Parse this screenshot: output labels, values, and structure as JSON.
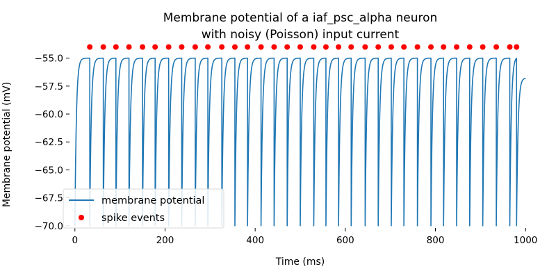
{
  "chart_data": {
    "type": "line",
    "title": "Membrane potential of a iaf_psc_alpha neuron\nwith noisy (Poisson) input current",
    "title_lines": [
      "Membrane potential of a iaf_psc_alpha neuron",
      "with noisy (Poisson) input current"
    ],
    "xlabel": "Time (ms)",
    "ylabel": "Membrane potential (mV)",
    "xlim": [
      -12,
      1012
    ],
    "ylim": [
      -70.2,
      -53.9
    ],
    "x_ticks": [
      0,
      200,
      400,
      600,
      800,
      1000
    ],
    "x_tick_labels": [
      "0",
      "200",
      "400",
      "600",
      "800",
      "1000"
    ],
    "y_ticks": [
      -70.0,
      -67.5,
      -65.0,
      -62.5,
      -60.0,
      -57.5,
      -55.0
    ],
    "y_tick_labels": [
      "−70.0",
      "−67.5",
      "−65.0",
      "−62.5",
      "−60.0",
      "−57.5",
      "−55.0"
    ],
    "grid": false,
    "legend_placement": "lower-left",
    "series": [
      {
        "name": "membrane potential",
        "color": "#1f77b4",
        "kind": "line",
        "v_reset": -70.0,
        "v_threshold": -55.0,
        "v_start": -70.0,
        "v_end": -56.8,
        "t_start": 0,
        "t_end": 1000
      },
      {
        "name": "spike events",
        "color": "#ff0000",
        "kind": "scatter",
        "y": -54.0,
        "x": [
          33,
          63,
          91,
          120,
          150,
          178,
          208,
          237,
          267,
          295,
          326,
          355,
          383,
          413,
          442,
          471,
          500,
          530,
          557,
          585,
          613,
          644,
          673,
          702,
          730,
          760,
          790,
          818,
          847,
          876,
          905,
          935,
          965,
          980
        ]
      }
    ]
  }
}
